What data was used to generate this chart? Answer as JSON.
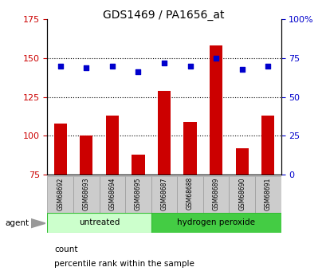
{
  "title": "GDS1469 / PA1656_at",
  "categories": [
    "GSM68692",
    "GSM68693",
    "GSM68694",
    "GSM68695",
    "GSM68687",
    "GSM68688",
    "GSM68689",
    "GSM68690",
    "GSM68691"
  ],
  "count_values": [
    108,
    100,
    113,
    88,
    129,
    109,
    158,
    92,
    113
  ],
  "percentile_values": [
    70,
    69,
    70,
    66,
    72,
    70,
    75,
    68,
    70
  ],
  "ylim_left": [
    75,
    175
  ],
  "ylim_right": [
    0,
    100
  ],
  "yticks_left": [
    75,
    100,
    125,
    150,
    175
  ],
  "yticks_right": [
    0,
    25,
    50,
    75,
    100
  ],
  "ytick_labels_right": [
    "0",
    "25",
    "50",
    "75",
    "100%"
  ],
  "bar_color": "#cc0000",
  "dot_color": "#0000cc",
  "bar_width": 0.5,
  "group1_label": "untreated",
  "group2_label": "hydrogen peroxide",
  "group1_indices": [
    0,
    1,
    2,
    3
  ],
  "group2_indices": [
    4,
    5,
    6,
    7,
    8
  ],
  "group1_color": "#ccffcc",
  "group2_color": "#44cc44",
  "agent_label": "agent",
  "legend_count_label": "count",
  "legend_pct_label": "percentile rank within the sample",
  "tick_label_color_left": "#cc0000",
  "tick_label_color_right": "#0000cc",
  "background_color": "#ffffff",
  "tick_bg_color": "#cccccc",
  "dotted_grid_lines": [
    100,
    125,
    150
  ]
}
